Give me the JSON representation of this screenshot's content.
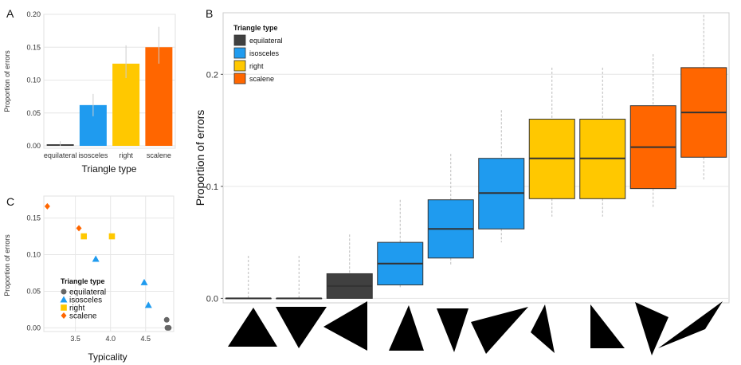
{
  "colors": {
    "equilateral": "#404040",
    "isosceles": "#1f9bef",
    "right": "#ffc800",
    "scalene": "#ff6600",
    "panel_bg": "#ffffff",
    "grid": "#e6e6e6",
    "error_bar": "#cccccc",
    "whisker": "#bbbbbb",
    "triangle_fill": "#000000"
  },
  "chart_data": [
    {
      "panel": "A",
      "type": "bar",
      "categories": [
        "equilateral",
        "isosceles",
        "right",
        "scalene"
      ],
      "values": [
        0.002,
        0.062,
        0.125,
        0.15
      ],
      "error_low": [
        0.0,
        0.045,
        0.103,
        0.125
      ],
      "error_high": [
        0.007,
        0.079,
        0.153,
        0.181
      ],
      "xlabel": "Triangle type",
      "ylabel": "Proportion of errors",
      "ylim": [
        0,
        0.2
      ],
      "yticks": [
        0,
        0.05,
        0.1,
        0.15,
        0.2
      ],
      "ytick_labels": [
        "0.00",
        "0.05",
        "0.10",
        "0.15",
        "0.20"
      ],
      "grid": true
    },
    {
      "panel": "B",
      "type": "box",
      "legend_title": "Triangle type",
      "legend_entries": [
        "equilateral",
        "isosceles",
        "right",
        "scalene"
      ],
      "legend_position": "top-left",
      "ylabel": "Proportion of errors",
      "ylim": [
        -0.004,
        0.255
      ],
      "yticks": [
        0,
        0.1,
        0.2
      ],
      "ytick_labels": [
        "0.0",
        "0.1",
        "0.2"
      ],
      "boxes": [
        {
          "type": "equilateral",
          "min": 0.0,
          "q1": 0.0,
          "median": 0.0,
          "q3": 0.0,
          "max": 0.038
        },
        {
          "type": "equilateral",
          "min": 0.0,
          "q1": 0.0,
          "median": 0.0,
          "q3": 0.0,
          "max": 0.038
        },
        {
          "type": "equilateral",
          "min": 0.0,
          "q1": 0.0,
          "median": 0.011,
          "q3": 0.022,
          "max": 0.057
        },
        {
          "type": "isosceles",
          "min": 0.01,
          "q1": 0.012,
          "median": 0.031,
          "q3": 0.05,
          "max": 0.088
        },
        {
          "type": "isosceles",
          "min": 0.029,
          "q1": 0.036,
          "median": 0.062,
          "q3": 0.088,
          "max": 0.129
        },
        {
          "type": "isosceles",
          "min": 0.05,
          "q1": 0.062,
          "median": 0.094,
          "q3": 0.125,
          "max": 0.168
        },
        {
          "type": "right",
          "min": 0.073,
          "q1": 0.089,
          "median": 0.125,
          "q3": 0.16,
          "max": 0.206
        },
        {
          "type": "right",
          "min": 0.073,
          "q1": 0.089,
          "median": 0.125,
          "q3": 0.16,
          "max": 0.206
        },
        {
          "type": "scalene",
          "min": 0.081,
          "q1": 0.098,
          "median": 0.135,
          "q3": 0.172,
          "max": 0.218
        },
        {
          "type": "scalene",
          "min": 0.105,
          "q1": 0.126,
          "median": 0.166,
          "q3": 0.206,
          "max": 0.253
        }
      ],
      "grid": true
    },
    {
      "panel": "C",
      "type": "scatter",
      "xlabel": "Typicality",
      "ylabel": "Proportion of errors",
      "xlim": [
        3.05,
        4.9
      ],
      "ylim": [
        -0.005,
        0.18
      ],
      "xticks": [
        3.5,
        4.0,
        4.5
      ],
      "xtick_labels": [
        "3.5",
        "4.0",
        "4.5"
      ],
      "yticks": [
        0,
        0.05,
        0.1,
        0.15
      ],
      "ytick_labels": [
        "0.00",
        "0.05",
        "0.10",
        "0.15"
      ],
      "legend_title": "Triangle type",
      "legend_entries": [
        "equilateral",
        "isosceles",
        "right",
        "scalene"
      ],
      "legend_position": "bottom-left",
      "points": [
        {
          "type": "scalene",
          "x": 3.1,
          "y": 0.166
        },
        {
          "type": "scalene",
          "x": 3.55,
          "y": 0.136
        },
        {
          "type": "right",
          "x": 3.62,
          "y": 0.125
        },
        {
          "type": "right",
          "x": 4.02,
          "y": 0.125
        },
        {
          "type": "isosceles",
          "x": 3.79,
          "y": 0.094
        },
        {
          "type": "isosceles",
          "x": 4.48,
          "y": 0.062
        },
        {
          "type": "isosceles",
          "x": 4.54,
          "y": 0.031
        },
        {
          "type": "equilateral",
          "x": 4.8,
          "y": 0.011
        },
        {
          "type": "equilateral",
          "x": 4.81,
          "y": 0.0
        },
        {
          "type": "equilateral",
          "x": 4.83,
          "y": 0.0
        }
      ],
      "grid": true
    }
  ],
  "panel_labels": {
    "a": "A",
    "b": "B",
    "c": "C"
  }
}
